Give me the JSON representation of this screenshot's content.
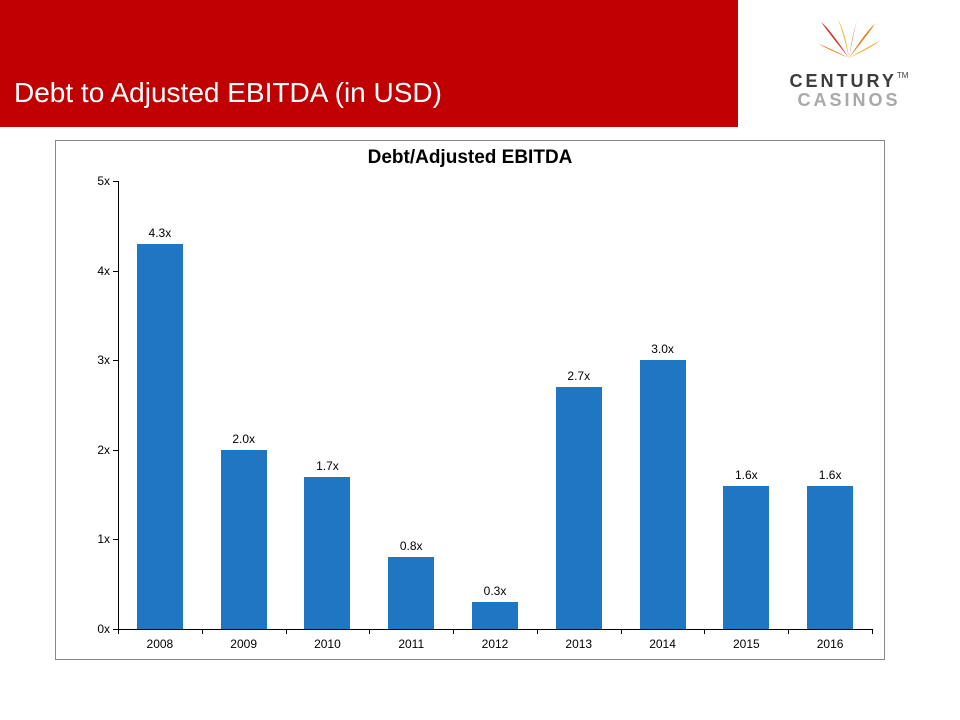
{
  "header": {
    "title": "Debt to Adjusted EBITDA (in USD)",
    "bg_color": "#c00000",
    "title_color": "#ffffff",
    "title_fontsize": 28
  },
  "logo": {
    "line1": "CENTURY",
    "line2": "CASINOS",
    "tm": "TM",
    "burst_colors": [
      "#d92e2e",
      "#f2b233",
      "#e67817"
    ]
  },
  "chart": {
    "type": "bar",
    "title": "Debt/Adjusted EBITDA",
    "title_fontsize": 19,
    "title_fontweight": "bold",
    "categories": [
      "2008",
      "2009",
      "2010",
      "2011",
      "2012",
      "2013",
      "2014",
      "2015",
      "2016"
    ],
    "values": [
      4.3,
      2.0,
      1.7,
      0.8,
      0.3,
      2.7,
      3.0,
      1.6,
      1.6
    ],
    "value_labels": [
      "4.3x",
      "2.0x",
      "1.7x",
      "0.8x",
      "0.3x",
      "2.7x",
      "3.0x",
      "1.6x",
      "1.6x"
    ],
    "bar_color": "#1f77c4",
    "ylim": [
      0,
      5
    ],
    "ytick_step": 1,
    "ytick_labels": [
      "0x",
      "1x",
      "2x",
      "3x",
      "4x",
      "5x"
    ],
    "background_color": "#ffffff",
    "border_color": "#888888",
    "axis_color": "#000000",
    "label_fontsize": 12,
    "bar_width_ratio": 0.55
  }
}
